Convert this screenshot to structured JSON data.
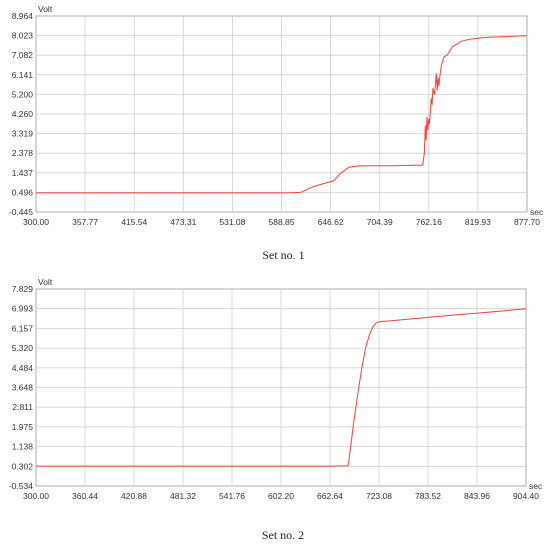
{
  "colors": {
    "series": "#ff3b3b",
    "grid": "#cfcfcf",
    "axis": "#9a9a9a",
    "text": "#333333"
  },
  "chart_data": [
    {
      "type": "line",
      "caption": "Set no. 1",
      "y_unit": "Volt",
      "x_unit": "sec",
      "grid": true,
      "xlim": [
        300.0,
        877.7
      ],
      "ylim": [
        -0.445,
        8.964
      ],
      "x_ticks": [
        "300.00",
        "357.77",
        "415.54",
        "473.31",
        "531.08",
        "588.85",
        "646.62",
        "704.39",
        "762.16",
        "819.93",
        "877.70"
      ],
      "y_ticks": [
        "8.964",
        "8.023",
        "7.082",
        "6.141",
        "5.200",
        "4.260",
        "3.319",
        "2.378",
        "1.437",
        "0.496",
        "-0.445"
      ],
      "series": [
        {
          "x": [
            300,
            400,
            500,
            600,
            612,
            625,
            638,
            650,
            658,
            668,
            680,
            700,
            720,
            745,
            755,
            757,
            758,
            759,
            760,
            761,
            762,
            763,
            764,
            765,
            766,
            767,
            769,
            771,
            772,
            773,
            774,
            775,
            777,
            780,
            784,
            787,
            790,
            795,
            800,
            810,
            820,
            835,
            850,
            865,
            877.7
          ],
          "y": [
            0.47,
            0.47,
            0.47,
            0.47,
            0.5,
            0.75,
            0.92,
            1.05,
            1.4,
            1.7,
            1.77,
            1.78,
            1.78,
            1.8,
            1.8,
            2.4,
            3.7,
            3.0,
            4.1,
            3.5,
            4.0,
            3.8,
            4.4,
            5.0,
            4.7,
            5.5,
            5.2,
            6.2,
            5.4,
            6.0,
            5.6,
            6.0,
            6.6,
            7.0,
            7.1,
            7.3,
            7.5,
            7.6,
            7.75,
            7.85,
            7.9,
            7.95,
            7.97,
            8.0,
            8.02
          ]
        }
      ]
    },
    {
      "type": "line",
      "caption": "Set no. 2",
      "y_unit": "Volt",
      "x_unit": "sec",
      "grid": true,
      "xlim": [
        300.0,
        904.4
      ],
      "ylim": [
        -0.534,
        7.829
      ],
      "x_ticks": [
        "300.00",
        "360.44",
        "420.88",
        "481.32",
        "541.76",
        "602.20",
        "662.64",
        "723.08",
        "783.52",
        "843.96",
        "904.40"
      ],
      "y_ticks": [
        "7.829",
        "6.993",
        "6.157",
        "5.320",
        "4.484",
        "3.648",
        "2.811",
        "1.975",
        "1.138",
        "0.302",
        "-0.534"
      ],
      "series": [
        {
          "x": [
            300,
            400,
            500,
            600,
            660,
            685,
            688,
            692,
            697,
            702,
            707,
            712,
            716,
            720,
            725,
            735,
            760,
            800,
            850,
            904.4
          ],
          "y": [
            0.31,
            0.31,
            0.31,
            0.31,
            0.31,
            0.32,
            1.1,
            2.2,
            3.4,
            4.5,
            5.4,
            5.95,
            6.25,
            6.4,
            6.45,
            6.47,
            6.55,
            6.68,
            6.82,
            6.99
          ]
        }
      ]
    }
  ]
}
